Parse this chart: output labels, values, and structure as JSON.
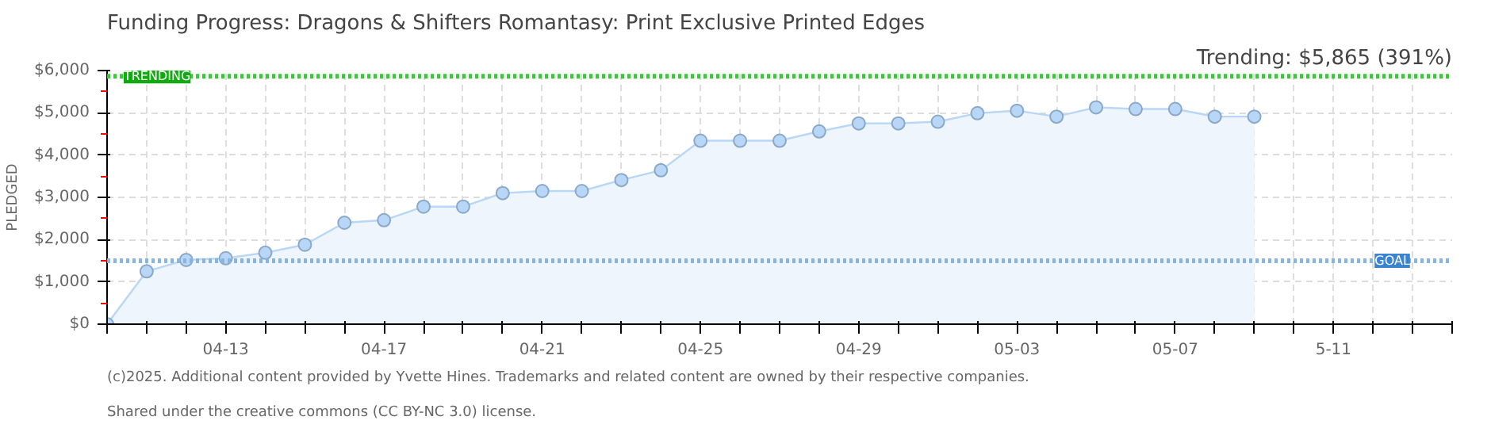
{
  "chart_data": {
    "type": "area",
    "title": "Funding Progress: Dragons & Shifters Romantasy: Print Exclusive    Printed Edges",
    "subtitle": "Trending: $5,865 (391%)",
    "ylabel": "PLEDGED",
    "x": [
      "2025-04-10",
      "2025-04-11",
      "2025-04-12",
      "2025-04-13",
      "2025-04-14",
      "2025-04-15",
      "2025-04-16",
      "2025-04-17",
      "2025-04-18",
      "2025-04-19",
      "2025-04-20",
      "2025-04-21",
      "2025-04-22",
      "2025-04-23",
      "2025-04-24",
      "2025-04-25",
      "2025-04-26",
      "2025-04-27",
      "2025-04-28",
      "2025-04-29",
      "2025-04-30",
      "2025-05-01",
      "2025-05-02",
      "2025-05-03",
      "2025-05-04",
      "2025-05-05",
      "2025-05-06",
      "2025-05-07",
      "2025-05-08",
      "2025-05-09"
    ],
    "series": [
      {
        "color": "#b8d6f5",
        "values": [
          0,
          1250,
          1520,
          1560,
          1690,
          1880,
          2400,
          2460,
          2780,
          2780,
          3100,
          3150,
          3150,
          3410,
          3640,
          4340,
          4340,
          4340,
          4560,
          4750,
          4750,
          4790,
          4990,
          5050,
          4910,
          5130,
          5090,
          5090,
          4910,
          4910
        ]
      }
    ],
    "xlim": [
      "2025-04-10",
      "2025-05-14"
    ],
    "xticks": [
      {
        "value": "2025-04-10",
        "label": null
      },
      {
        "value": "2025-04-11",
        "label": null
      },
      {
        "value": "2025-04-12",
        "label": null
      },
      {
        "value": "2025-04-13",
        "label": "04-13"
      },
      {
        "value": "2025-04-14",
        "label": null
      },
      {
        "value": "2025-04-15",
        "label": null
      },
      {
        "value": "2025-04-16",
        "label": null
      },
      {
        "value": "2025-04-17",
        "label": "04-17"
      },
      {
        "value": "2025-04-18",
        "label": null
      },
      {
        "value": "2025-04-19",
        "label": null
      },
      {
        "value": "2025-04-20",
        "label": null
      },
      {
        "value": "2025-04-21",
        "label": "04-21"
      },
      {
        "value": "2025-04-22",
        "label": null
      },
      {
        "value": "2025-04-23",
        "label": null
      },
      {
        "value": "2025-04-24",
        "label": null
      },
      {
        "value": "2025-04-25",
        "label": "04-25"
      },
      {
        "value": "2025-04-26",
        "label": null
      },
      {
        "value": "2025-04-27",
        "label": null
      },
      {
        "value": "2025-04-28",
        "label": null
      },
      {
        "value": "2025-04-29",
        "label": "04-29"
      },
      {
        "value": "2025-04-30",
        "label": null
      },
      {
        "value": "2025-05-01",
        "label": null
      },
      {
        "value": "2025-05-02",
        "label": null
      },
      {
        "value": "2025-05-03",
        "label": "05-03"
      },
      {
        "value": "2025-05-04",
        "label": null
      },
      {
        "value": "2025-05-05",
        "label": null
      },
      {
        "value": "2025-05-06",
        "label": null
      },
      {
        "value": "2025-05-07",
        "label": "05-07"
      },
      {
        "value": "2025-05-08",
        "label": null
      },
      {
        "value": "2025-05-09",
        "label": null
      },
      {
        "value": "2025-05-10",
        "label": null
      },
      {
        "value": "2025-05-11",
        "label": "5-11"
      },
      {
        "value": "2025-05-12",
        "label": null
      },
      {
        "value": "2025-05-13",
        "label": null
      },
      {
        "value": "2025-05-14",
        "label": null
      }
    ],
    "ylim": [
      0,
      6000
    ],
    "yticks": [
      {
        "value": 0,
        "label": "$0"
      },
      {
        "value": 1000,
        "label": "$1,000"
      },
      {
        "value": 2000,
        "label": "$2,000"
      },
      {
        "value": 3000,
        "label": "$3,000"
      },
      {
        "value": 4000,
        "label": "$4,000"
      },
      {
        "value": 5000,
        "label": "$5,000"
      },
      {
        "value": 6000,
        "label": "$6,000"
      }
    ],
    "ref_lines": [
      {
        "axis": "y",
        "value": 5865,
        "label": "TRENDING",
        "color": "#33cc33",
        "line_style": "dotted"
      },
      {
        "axis": "y",
        "value": 1500,
        "label": "GOAL",
        "color": "#88b4e0",
        "line_style": "dotted"
      }
    ],
    "grid": true,
    "marker": "circle",
    "annotations": [
      "(c)2025. Additional content provided by Yvette Hines. Trademarks and related content are owned by their respective companies.",
      "Shared under the creative commons (CC BY-NC 3.0) license."
    ]
  }
}
